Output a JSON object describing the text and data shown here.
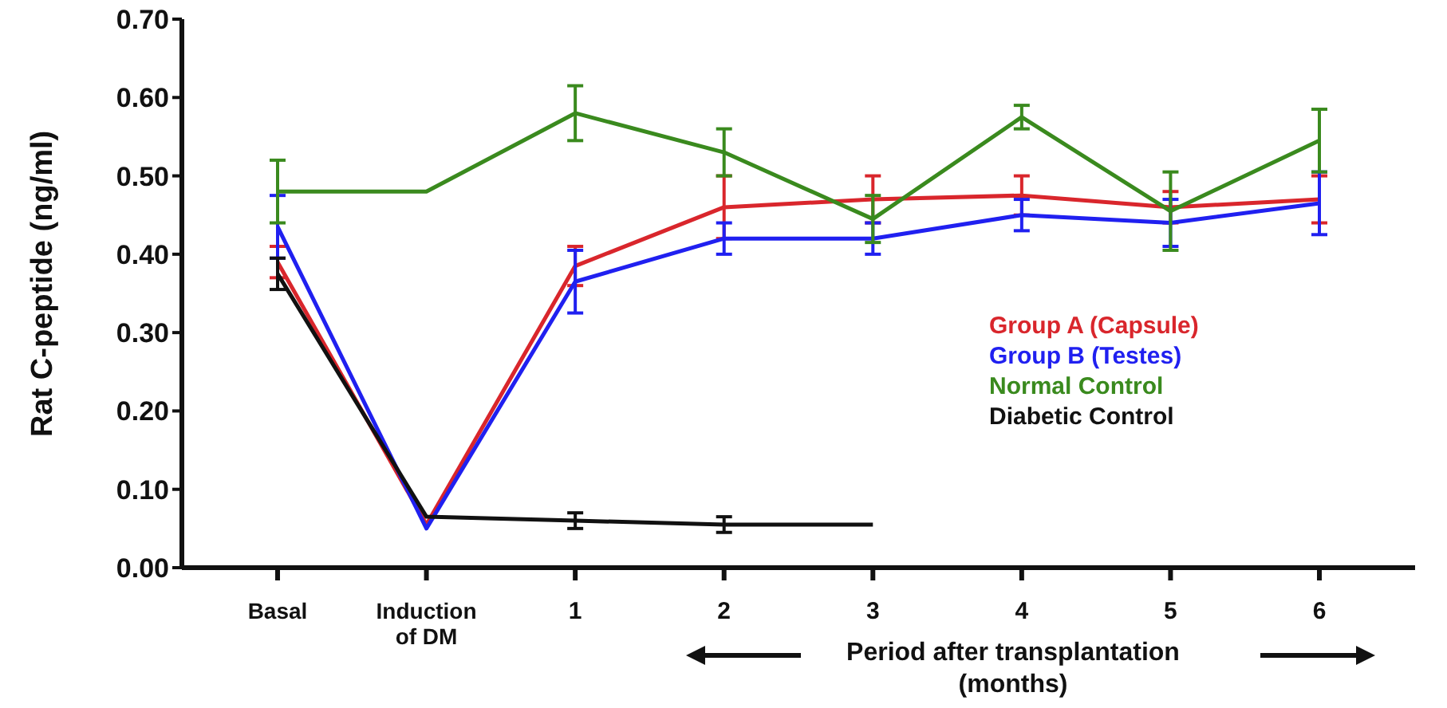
{
  "chart_data": {
    "type": "line",
    "ylabel": "Rat C-peptide (ng/ml)",
    "xlabel": "Period after transplantation (months)",
    "categories": [
      "Basal",
      "Induction of DM",
      "1",
      "2",
      "3",
      "4",
      "5",
      "6"
    ],
    "ylim": [
      0,
      0.7
    ],
    "yticks": [
      {
        "value": 0,
        "label": "0.00"
      },
      {
        "value": 0.1,
        "label": "0.10"
      },
      {
        "value": 0.2,
        "label": "0.20"
      },
      {
        "value": 0.3,
        "label": "0.30"
      },
      {
        "value": 0.4,
        "label": "0.40"
      },
      {
        "value": 0.5,
        "label": "0.50"
      },
      {
        "value": 0.6,
        "label": "0.60"
      },
      {
        "value": 0.7,
        "label": "0.70"
      }
    ],
    "grid": false,
    "legend": "right",
    "marker": "none",
    "line_style": "solid",
    "series": [
      {
        "name": "Group A (Capsule)",
        "color": "#d9262c",
        "values": [
          0.39,
          0.055,
          0.385,
          0.46,
          0.47,
          0.475,
          0.46,
          0.47
        ],
        "errors": [
          0.02,
          null,
          0.025,
          0.04,
          0.03,
          0.025,
          0.02,
          0.03
        ]
      },
      {
        "name": "Group B (Testes)",
        "color": "#2020f0",
        "values": [
          0.435,
          0.05,
          0.365,
          0.42,
          0.42,
          0.45,
          0.44,
          0.465
        ],
        "errors": [
          0.04,
          null,
          0.04,
          0.02,
          0.02,
          0.02,
          0.03,
          0.04
        ]
      },
      {
        "name": "Normal Control",
        "color": "#3a8a1e",
        "values": [
          0.48,
          0.48,
          0.58,
          0.53,
          0.445,
          0.575,
          0.455,
          0.545
        ],
        "errors": [
          0.04,
          null,
          0.035,
          0.03,
          0.03,
          0.015,
          0.05,
          0.04
        ]
      },
      {
        "name": "Diabetic Control",
        "color": "#111111",
        "values": [
          0.375,
          0.065,
          0.06,
          0.055,
          0.055,
          null,
          null,
          null
        ],
        "errors": [
          0.02,
          null,
          0.01,
          0.01,
          null,
          null,
          null,
          null
        ]
      }
    ]
  }
}
